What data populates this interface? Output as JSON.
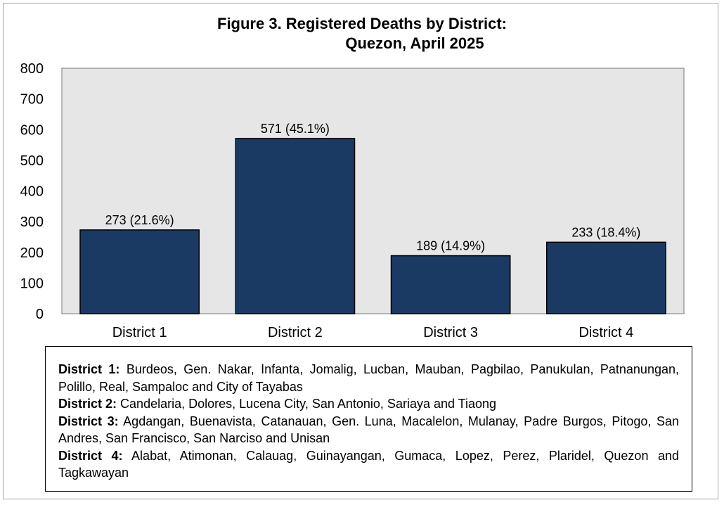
{
  "title_line1": "Figure 3. Registered Deaths by District:",
  "title_line2": "Quezon, April 2025",
  "chart_data": {
    "type": "bar",
    "categories": [
      "District 1",
      "District 2",
      "District 3",
      "District 4"
    ],
    "values": [
      273,
      571,
      189,
      233
    ],
    "data_labels": [
      "273 (21.6%)",
      "571 (45.1%)",
      "189 (14.9%)",
      "233 (18.4%)"
    ],
    "xlabel": "",
    "ylabel": "",
    "ylim": [
      0,
      800
    ],
    "yticks": [
      0,
      100,
      200,
      300,
      400,
      500,
      600,
      700,
      800
    ],
    "grid": false,
    "bar_color": "#1b3a63",
    "plot_background": "#e6e6e6"
  },
  "legend": [
    {
      "label": "District 1:",
      "text": "Burdeos, Gen. Nakar, Infanta, Jomalig, Lucban, Mauban, Pagbilao, Panukulan, Patnanungan, Polillo, Real, Sampaloc and City of Tayabas"
    },
    {
      "label": "District 2:",
      "text": "Candelaria, Dolores, Lucena City, San Antonio, Sariaya and Tiaong"
    },
    {
      "label": "District 3:",
      "text": "Agdangan, Buenavista, Catanauan, Gen. Luna, Macalelon, Mulanay, Padre Burgos, Pitogo, San Andres, San Francisco, San Narciso and Unisan"
    },
    {
      "label": "District 4:",
      "text": "Alabat, Atimonan, Calauag, Guinayangan, Gumaca, Lopez, Perez, Plaridel, Quezon and Tagkawayan"
    }
  ]
}
